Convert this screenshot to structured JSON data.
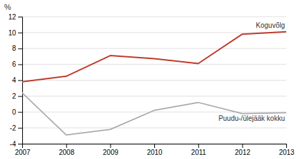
{
  "chart_data": {
    "type": "line",
    "y_label": "%",
    "x": [
      2007,
      2008,
      2009,
      2010,
      2011,
      2012,
      2013
    ],
    "series": [
      {
        "name": "Koguvõlg",
        "color": "#c0392b",
        "values": [
          3.8,
          4.5,
          7.1,
          6.7,
          6.1,
          9.8,
          10.1
        ]
      },
      {
        "name": "Puudu-/ülejääk kokku",
        "color": "#aaaaaa",
        "values": [
          2.4,
          -2.9,
          -2.2,
          0.2,
          1.2,
          -0.2,
          -0.1
        ]
      }
    ],
    "xlim": [
      2007,
      2013
    ],
    "xticks": [
      2007,
      2008,
      2009,
      2010,
      2011,
      2012,
      2013
    ],
    "ylim": [
      -4,
      12
    ],
    "yticks": [
      -4,
      -2,
      0,
      2,
      4,
      6,
      8,
      10,
      12
    ],
    "grid": true
  }
}
